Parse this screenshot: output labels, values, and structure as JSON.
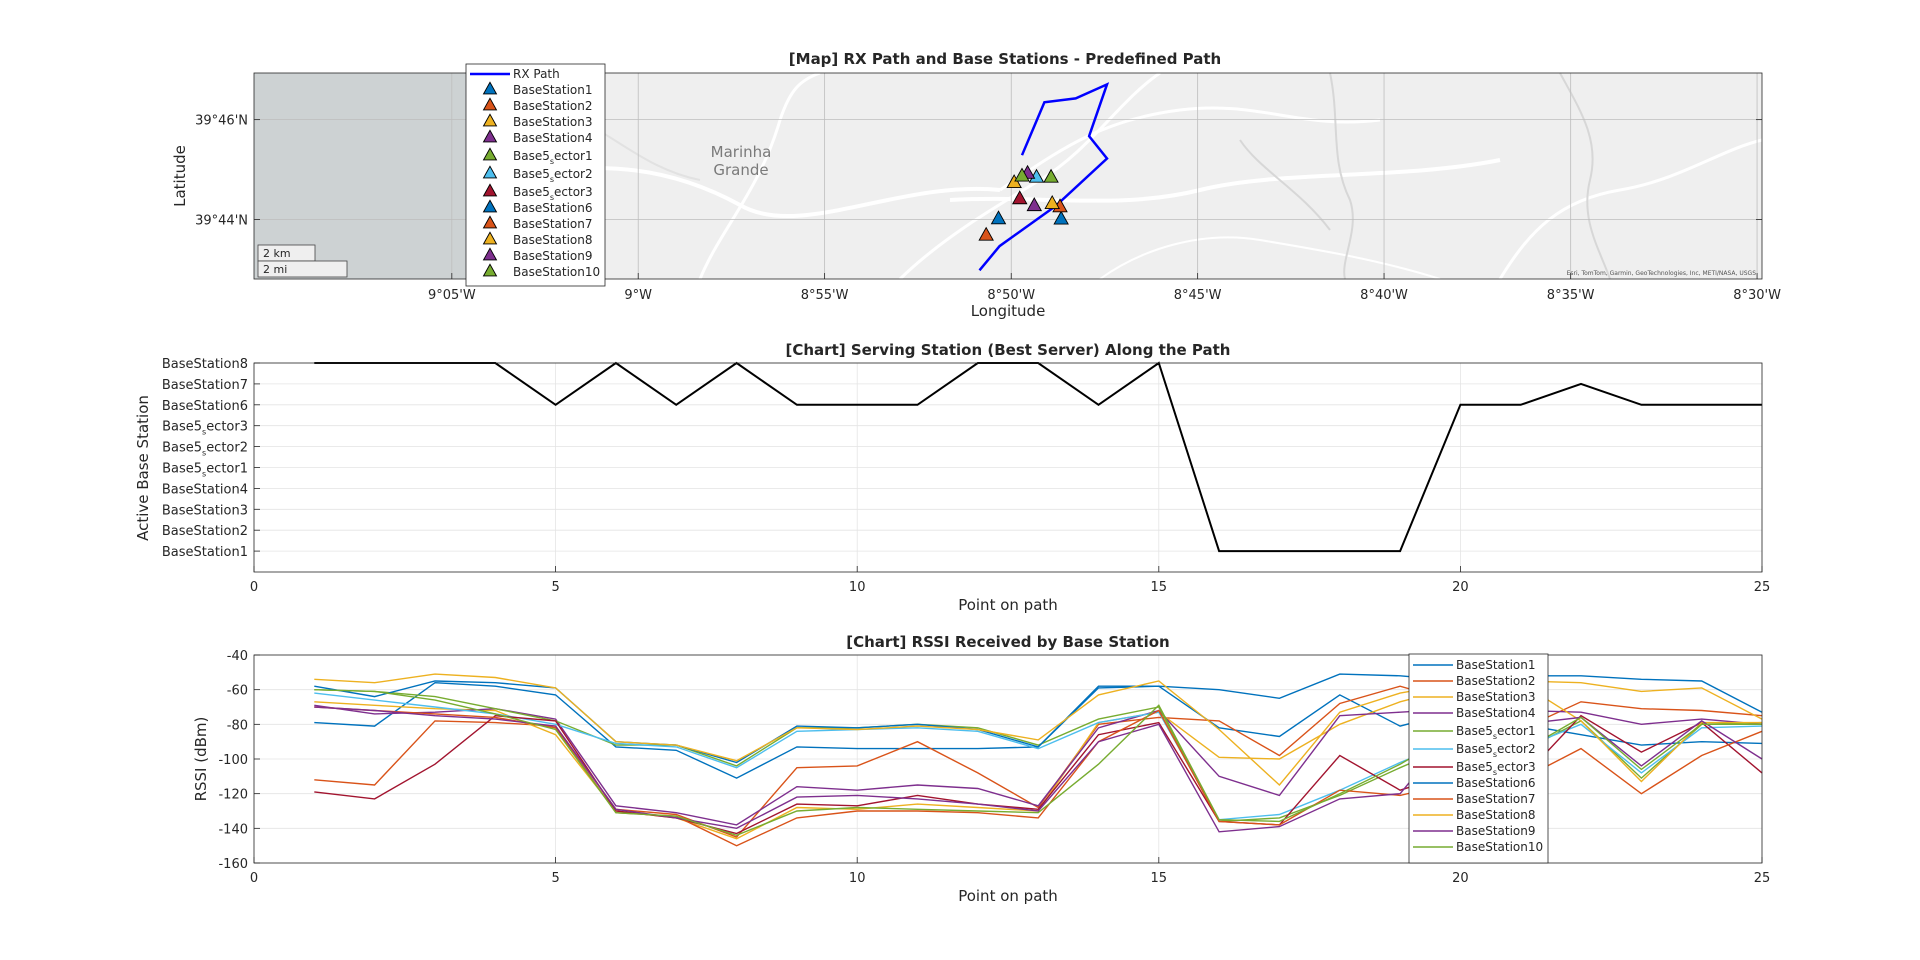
{
  "map": {
    "title": "[Map] RX Path and Base Stations - Predefined Path",
    "xlabel": "Longitude",
    "ylabel": "Latitude",
    "lon_ticks": [
      {
        "lon": -9.0833,
        "label": "9°05'W"
      },
      {
        "lon": -9.0,
        "label": "9°W"
      },
      {
        "lon": -8.9167,
        "label": "8°55'W"
      },
      {
        "lon": -8.8333,
        "label": "8°50'W"
      },
      {
        "lon": -8.75,
        "label": "8°45'W"
      },
      {
        "lon": -8.6667,
        "label": "8°40'W"
      },
      {
        "lon": -8.5833,
        "label": "8°35'W"
      },
      {
        "lon": -8.5,
        "label": "8°30'W"
      }
    ],
    "lat_ticks": [
      {
        "lat": 39.7667,
        "label": "39°46'N"
      },
      {
        "lat": 39.7333,
        "label": "39°44'N"
      }
    ],
    "xlim": [
      -9.1717,
      -8.4978
    ],
    "ylim": [
      39.7134,
      39.7823
    ],
    "city_label_line1": "Marinha",
    "city_label_line2": "Grande",
    "scale_km": "2 km",
    "scale_mi": "2 mi",
    "attribution": "Esri, TomTom, Garmin, GeoTechnologies, Inc, METI/NASA, USGS",
    "rx_path_color": "#0000ff",
    "rx_path": [
      [
        -8.8475,
        39.7163
      ],
      [
        -8.8385,
        39.7244
      ],
      [
        -8.8135,
        39.7378
      ],
      [
        -8.7905,
        39.7537
      ],
      [
        -8.7985,
        39.7612
      ],
      [
        -8.7905,
        39.7785
      ],
      [
        -8.8045,
        39.7738
      ],
      [
        -8.8185,
        39.7725
      ],
      [
        -8.8285,
        39.7548
      ]
    ],
    "stations": [
      {
        "name": "BaseStation1",
        "lon": -8.811,
        "lat": 39.7332,
        "color": "#0072bd"
      },
      {
        "name": "BaseStation2",
        "lon": -8.8115,
        "lat": 39.7373,
        "color": "#d95319"
      },
      {
        "name": "BaseStation3",
        "lon": -8.815,
        "lat": 39.7384,
        "color": "#edb120"
      },
      {
        "name": "BaseStation4",
        "lon": -8.823,
        "lat": 39.7377,
        "color": "#7e2f8e"
      },
      {
        "name": "Base5_sector1",
        "lon": -8.8155,
        "lat": 39.7472,
        "color": "#77ac30"
      },
      {
        "name": "Base5_sector2",
        "lon": -8.822,
        "lat": 39.7472,
        "color": "#4dbeee"
      },
      {
        "name": "Base5_sector3",
        "lon": -8.8295,
        "lat": 39.74,
        "color": "#a2142f"
      },
      {
        "name": "BaseStation6",
        "lon": -8.839,
        "lat": 39.7333,
        "color": "#0072bd"
      },
      {
        "name": "BaseStation7",
        "lon": -8.8445,
        "lat": 39.7278,
        "color": "#d95319"
      },
      {
        "name": "BaseStation8",
        "lon": -8.832,
        "lat": 39.7454,
        "color": "#edb120"
      },
      {
        "name": "BaseStation9",
        "lon": -8.826,
        "lat": 39.7485,
        "color": "#7e2f8e"
      },
      {
        "name": "BaseStation10",
        "lon": -8.8285,
        "lat": 39.7476,
        "color": "#77ac30"
      }
    ],
    "legend": [
      {
        "type": "line",
        "label": "RX Path",
        "color": "#0000ff"
      },
      {
        "type": "tri",
        "label": "BaseStation1",
        "color": "#0072bd"
      },
      {
        "type": "tri",
        "label": "BaseStation2",
        "color": "#d95319"
      },
      {
        "type": "tri",
        "label": "BaseStation3",
        "color": "#edb120"
      },
      {
        "type": "tri",
        "label": "BaseStation4",
        "color": "#7e2f8e"
      },
      {
        "type": "tri",
        "label": "Base5",
        "sub": "s",
        "rest": "ector1",
        "color": "#77ac30"
      },
      {
        "type": "tri",
        "label": "Base5",
        "sub": "s",
        "rest": "ector2",
        "color": "#4dbeee"
      },
      {
        "type": "tri",
        "label": "Base5",
        "sub": "s",
        "rest": "ector3",
        "color": "#a2142f"
      },
      {
        "type": "tri",
        "label": "BaseStation6",
        "color": "#0072bd"
      },
      {
        "type": "tri",
        "label": "BaseStation7",
        "color": "#d95319"
      },
      {
        "type": "tri",
        "label": "BaseStation8",
        "color": "#edb120"
      },
      {
        "type": "tri",
        "label": "BaseStation9",
        "color": "#7e2f8e"
      },
      {
        "type": "tri",
        "label": "BaseStation10",
        "color": "#77ac30"
      }
    ]
  },
  "chart_data": [
    {
      "type": "line",
      "title": "[Chart] Serving Station (Best Server) Along the Path",
      "xlabel": "Point on path",
      "ylabel": "Active Base Station",
      "xlim": [
        0,
        25
      ],
      "xticks": [
        0,
        5,
        10,
        15,
        20,
        25
      ],
      "ylim": [
        0,
        10
      ],
      "grid": true,
      "ytick_labels": [
        {
          "v": 1,
          "label": "BaseStation1"
        },
        {
          "v": 2,
          "label": "BaseStation2"
        },
        {
          "v": 3,
          "label": "BaseStation3"
        },
        {
          "v": 4,
          "label": "BaseStation4"
        },
        {
          "v": 5,
          "label": "Base5",
          "sub": "s",
          "rest": "ector1"
        },
        {
          "v": 6,
          "label": "Base5",
          "sub": "s",
          "rest": "ector2"
        },
        {
          "v": 7,
          "label": "Base5",
          "sub": "s",
          "rest": "ector3"
        },
        {
          "v": 8,
          "label": "BaseStation6"
        },
        {
          "v": 9,
          "label": "BaseStation7"
        },
        {
          "v": 10,
          "label": "BaseStation8"
        }
      ],
      "series": [
        {
          "color": "#000000",
          "x": [
            1,
            2,
            3,
            4,
            5,
            6,
            7,
            8,
            9,
            10,
            11,
            12,
            13,
            14,
            15,
            16,
            17,
            18,
            19,
            20,
            21,
            22,
            23,
            24,
            25
          ],
          "y": [
            10,
            10,
            10,
            10,
            8,
            10,
            8,
            10,
            8,
            8,
            8,
            10,
            10,
            8,
            10,
            1,
            1,
            1,
            1,
            8,
            8,
            9,
            8,
            8,
            8
          ]
        }
      ]
    },
    {
      "type": "line",
      "title": "[Chart] RSSI Received by Base Station",
      "xlabel": "Point on path",
      "ylabel": "RSSI (dBm)",
      "xlim": [
        0,
        25
      ],
      "xticks": [
        0,
        5,
        10,
        15,
        20,
        25
      ],
      "ylim": [
        -160,
        -40
      ],
      "yticks": [
        -160,
        -140,
        -120,
        -100,
        -80,
        -60,
        -40
      ],
      "grid": true,
      "legend_position": "inside upper right",
      "x": [
        1,
        2,
        3,
        4,
        5,
        6,
        7,
        8,
        9,
        10,
        11,
        12,
        13,
        14,
        15,
        16,
        17,
        18,
        19,
        20,
        21,
        22,
        23,
        24,
        25
      ],
      "series": [
        {
          "name": "BaseStation1",
          "color": "#0072bd",
          "values": [
            -79,
            -81,
            -56,
            -58,
            -63,
            -93,
            -95,
            -111,
            -93,
            -94,
            -94,
            -94,
            -93,
            -59,
            -58,
            -82,
            -87,
            -63,
            -81,
            -72,
            -80,
            -86,
            -92,
            -90,
            -91
          ]
        },
        {
          "name": "BaseStation2",
          "color": "#d95319",
          "values": [
            -112,
            -115,
            -78,
            -79,
            -81,
            -129,
            -132,
            -145,
            -105,
            -104,
            -90,
            -108,
            -128,
            -80,
            -76,
            -78,
            -98,
            -68,
            -58,
            -68,
            -83,
            -67,
            -71,
            -72,
            -75
          ]
        },
        {
          "name": "BaseStation3",
          "color": "#edb120",
          "values": [
            -67,
            -69,
            -71,
            -72,
            -86,
            -130,
            -134,
            -146,
            -128,
            -129,
            -126,
            -128,
            -130,
            -79,
            -73,
            -99,
            -100,
            -80,
            -67,
            -58,
            -55,
            -56,
            -61,
            -59,
            -77
          ]
        },
        {
          "name": "BaseStation4",
          "color": "#7e2f8e",
          "values": [
            -69,
            -74,
            -73,
            -71,
            -77,
            -127,
            -131,
            -138,
            -116,
            -118,
            -115,
            -117,
            -127,
            -82,
            -72,
            -110,
            -121,
            -75,
            -73,
            -71,
            -72,
            -73,
            -80,
            -77,
            -80
          ]
        },
        {
          "name": "Base5",
          "sub": "s",
          "rest": "ector1",
          "color": "#77ac30",
          "values": [
            -60,
            -61,
            -64,
            -71,
            -78,
            -92,
            -92,
            -104,
            -82,
            -82,
            -80,
            -82,
            -92,
            -77,
            -70,
            -136,
            -134,
            -121,
            -105,
            -90,
            -96,
            -78,
            -111,
            -80,
            -79
          ]
        },
        {
          "name": "Base5",
          "sub": "s",
          "rest": "ector2",
          "color": "#4dbeee",
          "values": [
            -62,
            -66,
            -70,
            -74,
            -80,
            -91,
            -93,
            -105,
            -84,
            -83,
            -82,
            -84,
            -94,
            -79,
            -73,
            -135,
            -132,
            -118,
            -102,
            -88,
            -94,
            -80,
            -108,
            -82,
            -81
          ]
        },
        {
          "name": "Base5",
          "sub": "s",
          "rest": "ector3",
          "color": "#a2142f",
          "values": [
            -119,
            -123,
            -103,
            -75,
            -78,
            -130,
            -134,
            -143,
            -126,
            -127,
            -121,
            -126,
            -129,
            -86,
            -79,
            -136,
            -138,
            -98,
            -118,
            -107,
            -112,
            -75,
            -96,
            -79,
            -108
          ]
        },
        {
          "name": "BaseStation6",
          "color": "#0072bd",
          "values": [
            -58,
            -64,
            -55,
            -56,
            -59,
            -90,
            -92,
            -102,
            -81,
            -82,
            -80,
            -83,
            -93,
            -58,
            -58,
            -60,
            -65,
            -51,
            -52,
            -55,
            -52,
            -52,
            -54,
            -55,
            -73
          ]
        },
        {
          "name": "BaseStation7",
          "color": "#d95319",
          "values": [
            -70,
            -72,
            -74,
            -76,
            -82,
            -131,
            -133,
            -150,
            -134,
            -130,
            -130,
            -131,
            -134,
            -90,
            -72,
            -136,
            -138,
            -118,
            -121,
            -113,
            -112,
            -94,
            -120,
            -98,
            -84
          ]
        },
        {
          "name": "BaseStation8",
          "color": "#edb120",
          "values": [
            -54,
            -56,
            -51,
            -53,
            -59,
            -90,
            -92,
            -101,
            -82,
            -83,
            -81,
            -83,
            -89,
            -63,
            -55,
            -83,
            -115,
            -73,
            -62,
            -56,
            -56,
            -78,
            -113,
            -79,
            -79
          ]
        },
        {
          "name": "BaseStation9",
          "color": "#7e2f8e",
          "values": [
            -70,
            -72,
            -75,
            -77,
            -81,
            -129,
            -134,
            -140,
            -122,
            -121,
            -123,
            -126,
            -130,
            -90,
            -80,
            -142,
            -139,
            -123,
            -120,
            -78,
            -80,
            -76,
            -104,
            -78,
            -100
          ]
        },
        {
          "name": "BaseStation10",
          "color": "#77ac30",
          "values": [
            -60,
            -61,
            -66,
            -74,
            -83,
            -131,
            -133,
            -144,
            -130,
            -128,
            -129,
            -130,
            -131,
            -103,
            -69,
            -135,
            -136,
            -120,
            -103,
            -83,
            -96,
            -76,
            -106,
            -80,
            -80
          ]
        }
      ]
    }
  ]
}
